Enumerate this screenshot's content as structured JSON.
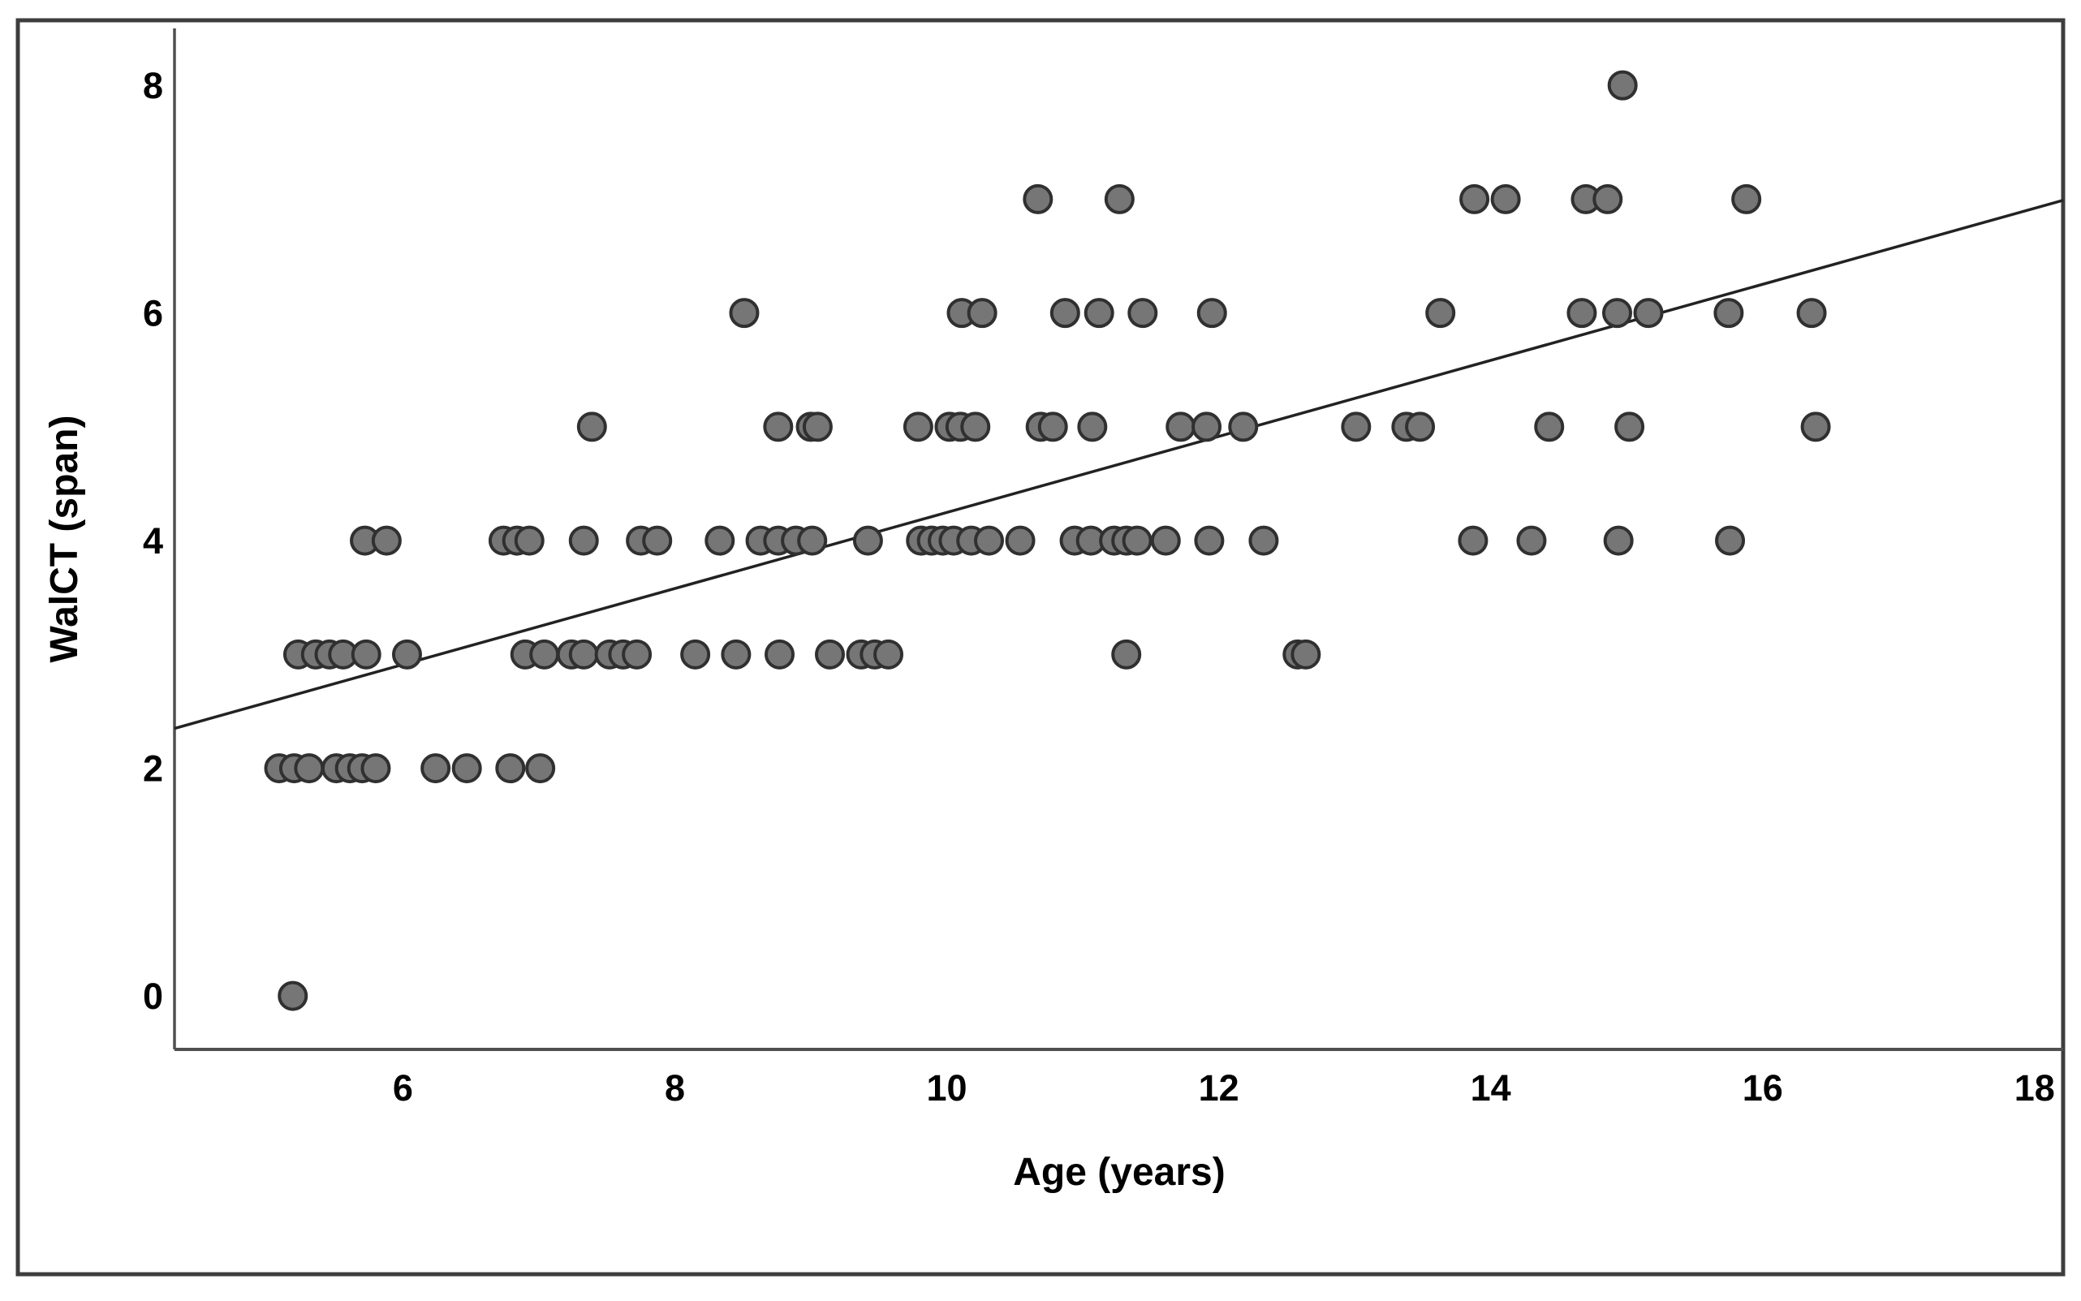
{
  "figure": {
    "background_color": "#ffffff",
    "border_color": "#3d3d3d",
    "axis_color": "#4f4f4f"
  },
  "chart_data": {
    "type": "scatter",
    "title": "",
    "xlabel": "Age (years)",
    "ylabel": "WalCT (span)",
    "x_ticks": [
      6,
      8,
      10,
      12,
      14,
      16,
      18
    ],
    "y_ticks": [
      0,
      2,
      4,
      6,
      8
    ],
    "xlim": [
      4.32,
      18.21
    ],
    "ylim": [
      -0.47,
      8.5
    ],
    "grid": false,
    "legend": null,
    "point_style": {
      "fill": "#767676",
      "stroke": "#303030",
      "radius_px": 16.5,
      "stroke_width": 4
    },
    "fit_line": {
      "x1": 4.32,
      "y1": 2.35,
      "x2": 18.21,
      "y2": 6.99,
      "color": "#222222",
      "width": 3.5
    },
    "points": [
      [
        5.19,
        0
      ],
      [
        5.09,
        2
      ],
      [
        5.2,
        2
      ],
      [
        5.31,
        2
      ],
      [
        5.51,
        2
      ],
      [
        5.61,
        2
      ],
      [
        5.7,
        2
      ],
      [
        5.8,
        2
      ],
      [
        6.24,
        2
      ],
      [
        6.47,
        2
      ],
      [
        6.79,
        2
      ],
      [
        7.01,
        2
      ],
      [
        5.23,
        3
      ],
      [
        5.36,
        3
      ],
      [
        5.46,
        3
      ],
      [
        5.56,
        3
      ],
      [
        5.73,
        3
      ],
      [
        6.03,
        3
      ],
      [
        6.9,
        3
      ],
      [
        7.04,
        3
      ],
      [
        7.24,
        3
      ],
      [
        7.33,
        3
      ],
      [
        7.52,
        3
      ],
      [
        7.62,
        3
      ],
      [
        7.72,
        3
      ],
      [
        8.15,
        3
      ],
      [
        8.45,
        3
      ],
      [
        8.77,
        3
      ],
      [
        9.14,
        3
      ],
      [
        9.37,
        3
      ],
      [
        9.47,
        3
      ],
      [
        9.57,
        3
      ],
      [
        11.32,
        3
      ],
      [
        12.58,
        3
      ],
      [
        12.64,
        3
      ],
      [
        5.72,
        4
      ],
      [
        5.88,
        4
      ],
      [
        6.74,
        4
      ],
      [
        6.84,
        4
      ],
      [
        6.93,
        4
      ],
      [
        7.33,
        4
      ],
      [
        7.75,
        4
      ],
      [
        7.87,
        4
      ],
      [
        8.33,
        4
      ],
      [
        8.63,
        4
      ],
      [
        8.76,
        4
      ],
      [
        8.89,
        4
      ],
      [
        9.01,
        4
      ],
      [
        9.42,
        4
      ],
      [
        9.81,
        4
      ],
      [
        9.89,
        4
      ],
      [
        9.97,
        4
      ],
      [
        10.05,
        4
      ],
      [
        10.18,
        4
      ],
      [
        10.31,
        4
      ],
      [
        10.54,
        4
      ],
      [
        10.94,
        4
      ],
      [
        11.06,
        4
      ],
      [
        11.23,
        4
      ],
      [
        11.32,
        4
      ],
      [
        11.4,
        4
      ],
      [
        11.61,
        4
      ],
      [
        11.93,
        4
      ],
      [
        12.33,
        4
      ],
      [
        13.87,
        4
      ],
      [
        14.3,
        4
      ],
      [
        14.94,
        4
      ],
      [
        15.76,
        4
      ],
      [
        7.39,
        5
      ],
      [
        8.76,
        5
      ],
      [
        9.0,
        5
      ],
      [
        9.05,
        5
      ],
      [
        9.79,
        5
      ],
      [
        10.02,
        5
      ],
      [
        10.1,
        5
      ],
      [
        10.21,
        5
      ],
      [
        10.69,
        5
      ],
      [
        10.78,
        5
      ],
      [
        11.07,
        5
      ],
      [
        11.72,
        5
      ],
      [
        11.91,
        5
      ],
      [
        12.18,
        5
      ],
      [
        13.01,
        5
      ],
      [
        13.38,
        5
      ],
      [
        13.48,
        5
      ],
      [
        14.43,
        5
      ],
      [
        15.02,
        5
      ],
      [
        16.39,
        5
      ],
      [
        8.51,
        6
      ],
      [
        10.11,
        6
      ],
      [
        10.26,
        6
      ],
      [
        10.87,
        6
      ],
      [
        11.12,
        6
      ],
      [
        11.44,
        6
      ],
      [
        11.95,
        6
      ],
      [
        13.63,
        6
      ],
      [
        14.67,
        6
      ],
      [
        14.93,
        6
      ],
      [
        15.16,
        6
      ],
      [
        15.75,
        6
      ],
      [
        16.36,
        6
      ],
      [
        10.67,
        7
      ],
      [
        11.27,
        7
      ],
      [
        13.88,
        7
      ],
      [
        14.11,
        7
      ],
      [
        14.7,
        7
      ],
      [
        14.86,
        7
      ],
      [
        15.88,
        7
      ],
      [
        14.97,
        8
      ]
    ]
  }
}
